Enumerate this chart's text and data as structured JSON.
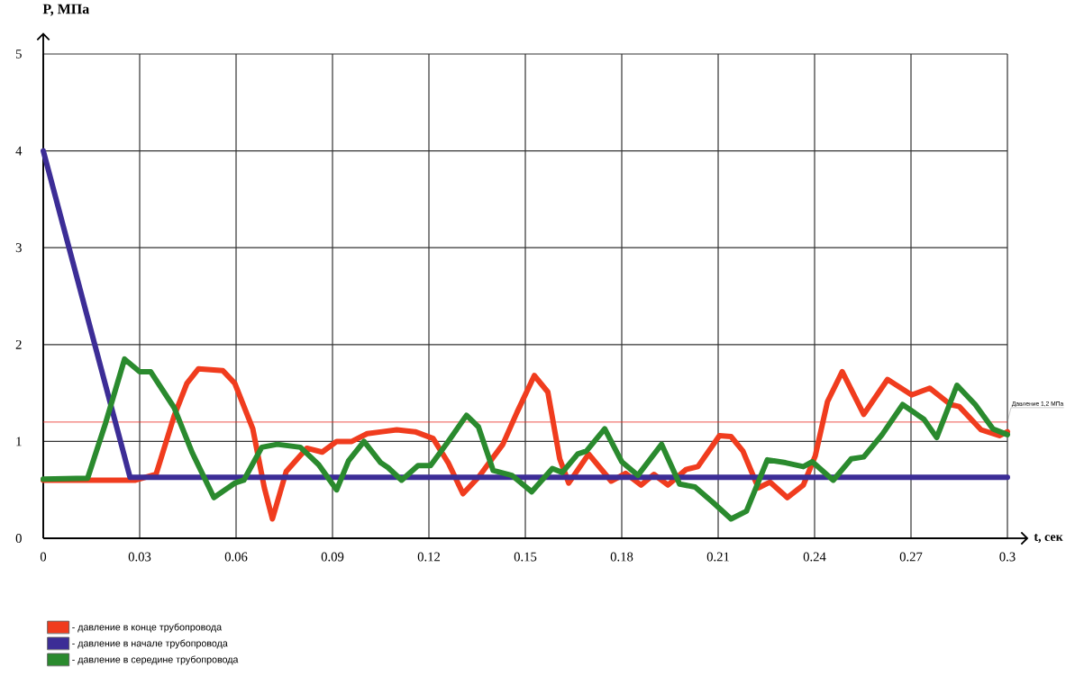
{
  "chart_data": {
    "type": "line",
    "xlabel": "t, сек",
    "ylabel": "P, МПа",
    "xlim": [
      0,
      0.3
    ],
    "ylim": [
      0,
      5
    ],
    "xticks": [
      0,
      0.03,
      0.06,
      0.09,
      0.12,
      0.15,
      0.18,
      0.21,
      0.24,
      0.27,
      0.3
    ],
    "yticks": [
      0,
      1,
      2,
      3,
      4,
      5
    ],
    "grid": true,
    "legend": "bottom left",
    "marker": "none",
    "line_style": "solid",
    "ref_lines": [
      {
        "axis": "y",
        "value": 1.2,
        "label": "Давление 1,2 МПа",
        "color": "#e8281e"
      }
    ],
    "series": [
      {
        "name": "- давление в конце трубопровода",
        "color": "#f03c1e",
        "x": [
          0,
          0.0287,
          0.0351,
          0.0407,
          0.0447,
          0.0483,
          0.0559,
          0.0596,
          0.0652,
          0.0688,
          0.0713,
          0.0756,
          0.082,
          0.0868,
          0.0913,
          0.096,
          0.1008,
          0.1054,
          0.11,
          0.1157,
          0.1213,
          0.126,
          0.1306,
          0.1354,
          0.143,
          0.1474,
          0.1528,
          0.157,
          0.1607,
          0.1635,
          0.1697,
          0.1767,
          0.1812,
          0.186,
          0.19,
          0.1944,
          0.2,
          0.2037,
          0.2104,
          0.214,
          0.2177,
          0.2225,
          0.2261,
          0.2315,
          0.2365,
          0.2402,
          0.244,
          0.2486,
          0.2553,
          0.2627,
          0.2702,
          0.2758,
          0.2823,
          0.285,
          0.2918,
          0.2975,
          0.3
        ],
        "values": [
          0.6,
          0.6,
          0.66,
          1.26,
          1.6,
          1.75,
          1.73,
          1.6,
          1.13,
          0.52,
          0.2,
          0.69,
          0.93,
          0.89,
          1.0,
          1.0,
          1.08,
          1.1,
          1.12,
          1.1,
          1.03,
          0.78,
          0.46,
          0.63,
          0.97,
          1.3,
          1.68,
          1.51,
          0.82,
          0.57,
          0.87,
          0.59,
          0.67,
          0.55,
          0.66,
          0.55,
          0.71,
          0.74,
          1.06,
          1.05,
          0.9,
          0.52,
          0.58,
          0.42,
          0.55,
          0.85,
          1.41,
          1.72,
          1.28,
          1.64,
          1.48,
          1.55,
          1.38,
          1.36,
          1.12,
          1.06,
          1.1
        ]
      },
      {
        "name": "- давление в начале трубопровода",
        "color": "#3c2d96",
        "x": [
          0,
          0.027,
          0.3
        ],
        "values": [
          4,
          0.63,
          0.63
        ]
      },
      {
        "name": "- давление в середине трубопровода",
        "color": "#2a8a2e",
        "x": [
          0,
          0.0138,
          0.0194,
          0.0253,
          0.03,
          0.0334,
          0.0407,
          0.0464,
          0.0531,
          0.0596,
          0.0624,
          0.068,
          0.0728,
          0.08,
          0.0857,
          0.0913,
          0.095,
          0.0998,
          0.105,
          0.1073,
          0.1115,
          0.1166,
          0.1205,
          0.126,
          0.1317,
          0.1354,
          0.14,
          0.1458,
          0.152,
          0.1584,
          0.1615,
          0.1663,
          0.169,
          0.1747,
          0.18,
          0.185,
          0.1924,
          0.198,
          0.2028,
          0.2084,
          0.214,
          0.2188,
          0.2253,
          0.231,
          0.2365,
          0.2393,
          0.2458,
          0.2514,
          0.2553,
          0.261,
          0.2674,
          0.274,
          0.278,
          0.2843,
          0.29,
          0.2955,
          0.3
        ],
        "values": [
          0.61,
          0.62,
          1.19,
          1.85,
          1.72,
          1.72,
          1.35,
          0.88,
          0.42,
          0.57,
          0.6,
          0.94,
          0.97,
          0.94,
          0.76,
          0.5,
          0.8,
          1.0,
          0.78,
          0.73,
          0.6,
          0.75,
          0.75,
          1.0,
          1.27,
          1.15,
          0.7,
          0.65,
          0.48,
          0.72,
          0.68,
          0.87,
          0.9,
          1.13,
          0.79,
          0.65,
          0.97,
          0.56,
          0.53,
          0.37,
          0.2,
          0.28,
          0.81,
          0.78,
          0.74,
          0.79,
          0.6,
          0.82,
          0.84,
          1.07,
          1.38,
          1.23,
          1.04,
          1.58,
          1.38,
          1.13,
          1.07
        ]
      }
    ]
  }
}
